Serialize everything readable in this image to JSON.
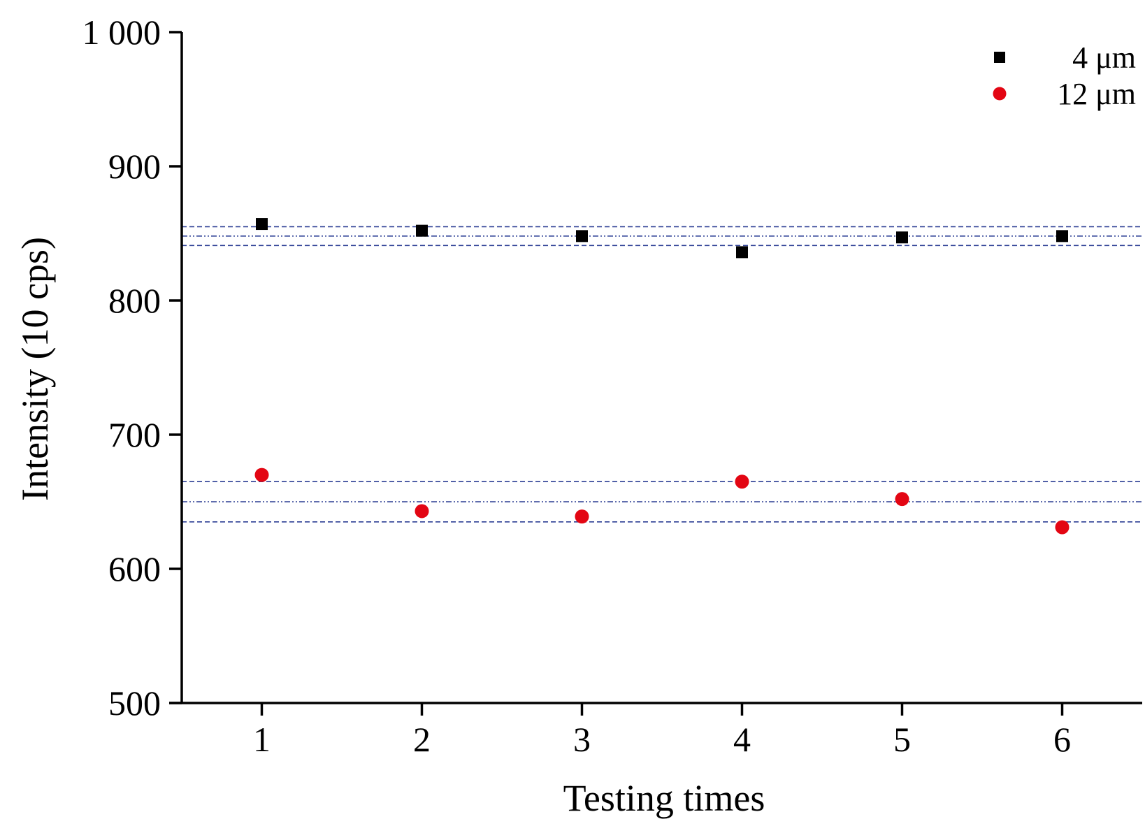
{
  "chart_data": {
    "type": "scatter",
    "title": "",
    "xlabel": "Testing times",
    "ylabel": "Intensity (10 cps)",
    "xlim": [
      0.5,
      6.5
    ],
    "ylim": [
      500,
      1000
    ],
    "x_ticks": [
      1,
      2,
      3,
      4,
      5,
      6
    ],
    "x_tick_labels": [
      "1",
      "2",
      "3",
      "4",
      "5",
      "6"
    ],
    "y_ticks": [
      500,
      600,
      700,
      800,
      900,
      1000
    ],
    "y_tick_labels": [
      "500",
      "600",
      "700",
      "800",
      "900",
      "1 000"
    ],
    "grid": false,
    "legend_position": "top-right",
    "series": [
      {
        "name": "4 μm",
        "marker": "square",
        "color": "#000000",
        "x": [
          1,
          2,
          3,
          4,
          5,
          6
        ],
        "y": [
          857,
          852,
          848,
          836,
          847,
          848
        ],
        "mean_line": 848,
        "band": [
          841,
          855
        ]
      },
      {
        "name": "12 μm",
        "marker": "circle",
        "color": "#e30613",
        "x": [
          1,
          2,
          3,
          4,
          5,
          6
        ],
        "y": [
          670,
          643,
          639,
          665,
          652,
          631
        ],
        "mean_line": 650,
        "band": [
          635,
          665
        ]
      }
    ],
    "reference_line_color": "#2b3d94"
  }
}
